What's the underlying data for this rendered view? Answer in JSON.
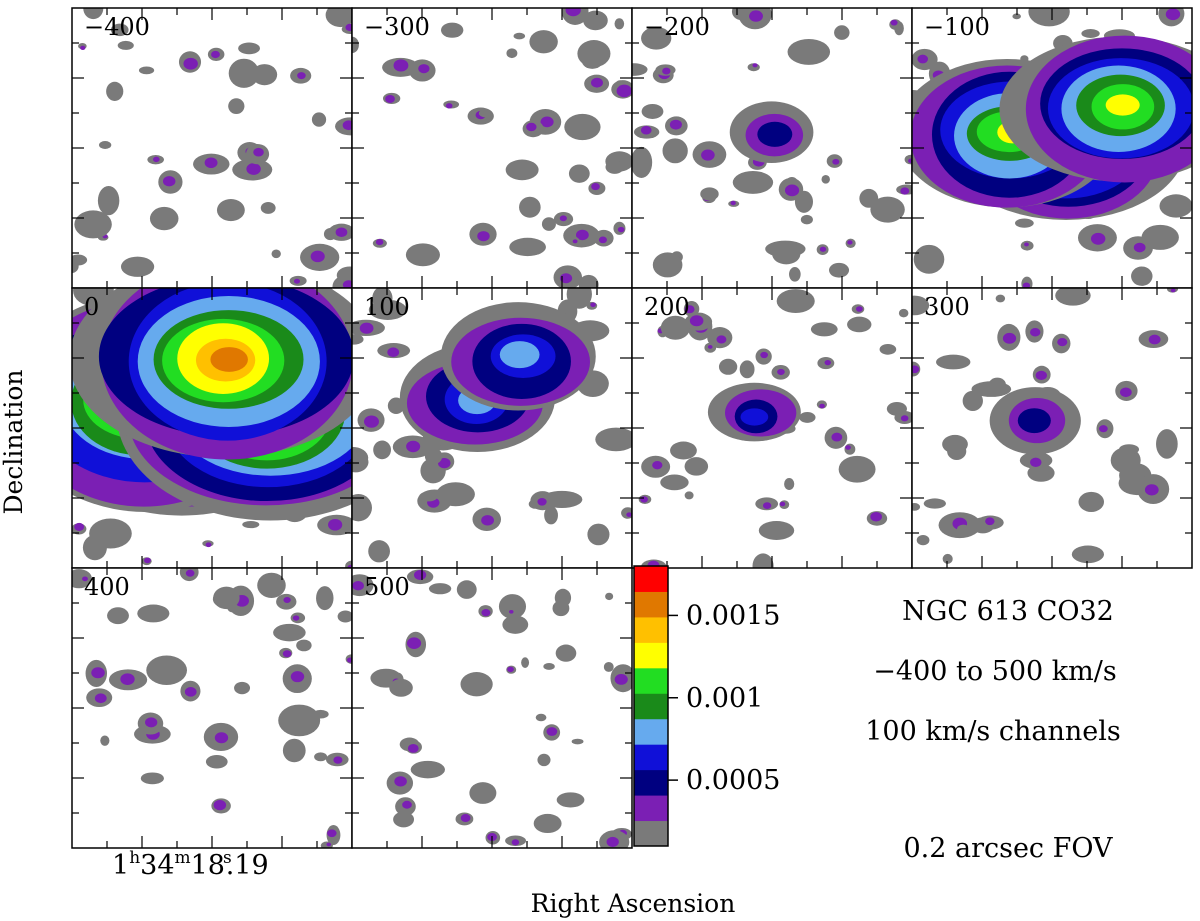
{
  "chart_data": {
    "type": "heatmap",
    "title": "NGC 613 CO32",
    "caption_lines": [
      "NGC 613 CO32",
      "−400 to 500 km/s",
      "100 km/s channels",
      "0.2 arcsec FOV"
    ],
    "xlabel": "Right Ascension",
    "ylabel": "Declination",
    "ra_label": {
      "h": "1",
      "h_sup": "h",
      "m": "34",
      "m_sup": "m",
      "s": "18",
      "s_sup": "s",
      "frac": ".19"
    },
    "channel_unit": "km/s",
    "channel_width": 100,
    "velocity_range": [
      -400,
      500
    ],
    "channels": [
      {
        "label": "−400",
        "velocity": -400,
        "peak_level": 1
      },
      {
        "label": "−300",
        "velocity": -300,
        "peak_level": 1
      },
      {
        "label": "−200",
        "velocity": -200,
        "peak_level": 2
      },
      {
        "label": "−100",
        "velocity": -100,
        "peak_level": 7
      },
      {
        "label": "0",
        "velocity": 0,
        "peak_level": 9
      },
      {
        "label": "100",
        "velocity": 100,
        "peak_level": 4
      },
      {
        "label": "200",
        "velocity": 200,
        "peak_level": 3
      },
      {
        "label": "300",
        "velocity": 300,
        "peak_level": 2
      },
      {
        "label": "400",
        "velocity": 400,
        "peak_level": 1
      },
      {
        "label": "500",
        "velocity": 500,
        "peak_level": 1
      }
    ],
    "colorbar": {
      "colors": [
        "#7a7a7a",
        "#7b1fb4",
        "#000080",
        "#1010d8",
        "#66aaee",
        "#1a8a1a",
        "#22dd22",
        "#ffff00",
        "#ffc000",
        "#e07800",
        "#ff0000"
      ],
      "range": [
        0.0001,
        0.0018
      ],
      "tick_values": [
        0.0005,
        0.001,
        0.0015
      ],
      "tick_labels": [
        "0.0005",
        "0.001",
        "0.0015"
      ]
    }
  }
}
